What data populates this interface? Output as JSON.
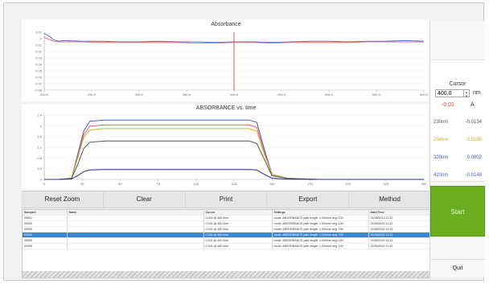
{
  "charts": {
    "absorbance": {
      "title": "Absorbance",
      "y_ticks": [
        "0.01",
        "0",
        "-0.01",
        "-0.02",
        "-0.03",
        "-0.04",
        "-0.05",
        "-0.06",
        "-0.07",
        "-0.08"
      ],
      "x_ticks": [
        "200.0",
        "250.0",
        "300.0",
        "350.0",
        "400.0",
        "450.0",
        "500.0",
        "550.0",
        "600.0"
      ]
    },
    "time": {
      "title": "ABSORBANCE vs. time",
      "y_ticks": [
        "2.4",
        "2",
        "1.6",
        "1.2",
        "0.8",
        "0.4",
        "0"
      ],
      "x_ticks": [
        "0",
        "25",
        "50",
        "75",
        "100",
        "125",
        "150",
        "175",
        "200",
        "225",
        "250"
      ]
    }
  },
  "chart_data": [
    {
      "type": "line",
      "title": "Absorbance",
      "xlim": [
        200,
        600
      ],
      "ylim": [
        -0.08,
        0.01
      ],
      "cursor_x": 400,
      "x": [
        200,
        205,
        210,
        215,
        220,
        240,
        260,
        280,
        300,
        320,
        340,
        360,
        380,
        400,
        420,
        440,
        460,
        480,
        500,
        520,
        540,
        560,
        580,
        600
      ],
      "series": [
        {
          "color": "#5b6fd6",
          "values": [
            0.008,
            0.004,
            -0.002,
            -0.004,
            -0.003,
            -0.004,
            -0.004,
            -0.005,
            -0.005,
            -0.004,
            -0.005,
            -0.005,
            -0.006,
            -0.005,
            -0.005,
            -0.006,
            -0.005,
            -0.004,
            -0.004,
            -0.005,
            -0.004,
            -0.004,
            -0.003,
            -0.004
          ]
        },
        {
          "color": "#e57373",
          "values": [
            0.002,
            -0.001,
            -0.004,
            -0.005,
            -0.005,
            -0.005,
            -0.006,
            -0.006,
            -0.006,
            -0.006,
            -0.006,
            -0.007,
            -0.007,
            -0.006,
            -0.006,
            -0.007,
            -0.006,
            -0.006,
            -0.006,
            -0.006,
            -0.005,
            -0.005,
            -0.005,
            -0.005
          ]
        }
      ]
    },
    {
      "type": "line",
      "title": "ABSORBANCE vs. time",
      "xlim": [
        0,
        250
      ],
      "ylim": [
        0,
        2.6
      ],
      "x": [
        0,
        10,
        18,
        22,
        26,
        30,
        40,
        60,
        80,
        100,
        120,
        135,
        140,
        145,
        150,
        160,
        180,
        250
      ],
      "series": [
        {
          "color": "#4a5ec8",
          "values": [
            0,
            0,
            0.05,
            1.0,
            1.95,
            2.35,
            2.4,
            2.4,
            2.4,
            2.4,
            2.4,
            2.4,
            2.3,
            1.2,
            0.2,
            0.05,
            0,
            0
          ]
        },
        {
          "color": "#e05b5b",
          "values": [
            0,
            0,
            0.05,
            0.9,
            1.8,
            2.15,
            2.2,
            2.2,
            2.2,
            2.2,
            2.2,
            2.2,
            2.1,
            1.1,
            0.2,
            0.05,
            0,
            0
          ]
        },
        {
          "color": "#d6b21f",
          "values": [
            0,
            0,
            0.05,
            0.85,
            1.7,
            2.0,
            2.05,
            2.05,
            2.05,
            2.05,
            2.05,
            2.05,
            1.95,
            1.0,
            0.2,
            0.05,
            0,
            0
          ]
        },
        {
          "color": "#555555",
          "values": [
            0,
            0,
            0.04,
            0.6,
            1.25,
            1.5,
            1.55,
            1.55,
            1.55,
            1.55,
            1.55,
            1.55,
            1.45,
            0.8,
            0.15,
            0.04,
            0,
            0
          ]
        },
        {
          "color": "#2b2f87",
          "values": [
            0,
            0,
            0.02,
            0.15,
            0.32,
            0.38,
            0.4,
            0.4,
            0.4,
            0.4,
            0.4,
            0.4,
            0.38,
            0.2,
            0.05,
            0.01,
            0,
            0
          ]
        }
      ]
    }
  ],
  "cursor": {
    "title": "Cursor",
    "value": "400.0",
    "unit": "nm",
    "absorbance": "-0.01",
    "abs_unit": "A",
    "readings": [
      {
        "wl": "230nm",
        "val": "-0.0134",
        "color": "#555555"
      },
      {
        "wl": "254nm",
        "val": "-0.0185",
        "color": "#d6a51f"
      },
      {
        "wl": "320nm",
        "val": "0.0002",
        "color": "#3a4fb5"
      },
      {
        "wl": "420nm",
        "val": "-0.0148",
        "color": "#4a5ec8"
      }
    ]
  },
  "buttons": {
    "start": "Start",
    "quit": "Quit"
  },
  "toolbar": [
    "Reset Zoom",
    "Clear",
    "Print",
    "Export",
    "Method"
  ],
  "table": {
    "headers": [
      "Sample#",
      "Name",
      "Cursor",
      "Settings",
      "Date/Time"
    ],
    "rows": [
      {
        "id": "00001",
        "name": "",
        "cursor": "0.024 @ 400.0nm",
        "settings": "mode: ABSORBANCE path length: 1.000mm avg: 100",
        "date": "21/06/2019 11:32"
      },
      {
        "id": "00002",
        "name": "",
        "cursor": "0.024 @ 400.0nm",
        "settings": "mode: ABSORBANCE path length: 1.000mm avg: 100",
        "date": "21/06/2019 11:32"
      },
      {
        "id": "00003",
        "name": "",
        "cursor": "0.024 @ 400.0nm",
        "settings": "mode: ABSORBANCE path length: 1.000mm avg: 100",
        "date": "21/06/2019 11:33"
      },
      {
        "id": "00004",
        "name": "",
        "cursor": "0.024 @ 400.0nm",
        "settings": "mode: ABSORBANCE path length: 1.000mm avg: 100",
        "date": "21/06/2019 11:33"
      },
      {
        "id": "00005",
        "name": "",
        "cursor": "0.024 @ 400.0nm",
        "settings": "mode: ABSORBANCE path length: 1.000mm avg: 100",
        "date": "21/06/2019 11:41"
      },
      {
        "id": "00006",
        "name": "",
        "cursor": "0.024 @ 400.0nm",
        "settings": "mode: ABSORBANCE path length: 1.000mm avg: 100",
        "date": "21/06/2019 11:42"
      }
    ],
    "selected_index": 3
  }
}
